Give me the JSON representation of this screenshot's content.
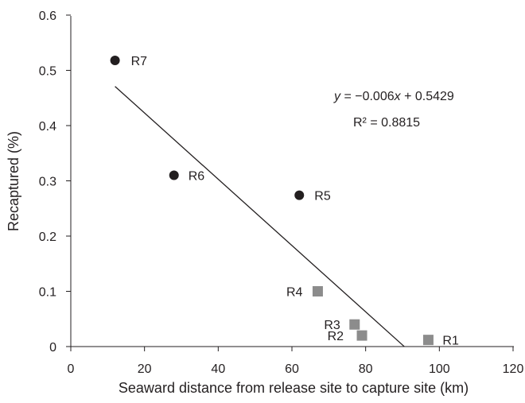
{
  "chart_data": {
    "type": "scatter",
    "title": "",
    "xlabel": "Seaward distance from release site to capture site (km)",
    "ylabel": "Recaptured (%)",
    "xlim": [
      0,
      120
    ],
    "ylim": [
      0,
      0.6
    ],
    "xticks": [
      "0",
      "20",
      "40",
      "60",
      "80",
      "100",
      "120"
    ],
    "yticks": [
      "0",
      "0.1",
      "0.2",
      "0.3",
      "0.4",
      "0.5",
      "0.6"
    ],
    "grid": false,
    "colors": {
      "circle": "#231f20",
      "square": "#8c8c8c",
      "line": "#231f20",
      "axis": "#231f20"
    },
    "series": [
      {
        "marker": "circle",
        "points": [
          {
            "label": "R7",
            "x": 12,
            "y": 0.518
          },
          {
            "label": "R6",
            "x": 28,
            "y": 0.31
          },
          {
            "label": "R5",
            "x": 62,
            "y": 0.274
          }
        ]
      },
      {
        "marker": "square",
        "points": [
          {
            "label": "R4",
            "x": 67,
            "y": 0.1
          },
          {
            "label": "R3",
            "x": 77,
            "y": 0.04
          },
          {
            "label": "R2",
            "x": 79,
            "y": 0.02
          },
          {
            "label": "R1",
            "x": 97,
            "y": 0.012
          }
        ]
      }
    ],
    "trendline": {
      "slope": -0.006,
      "intercept": 0.5429,
      "x_from": 12,
      "x_to": 90.5
    },
    "annotations": {
      "equation_y": "y",
      "equation_rest": " = −0.006",
      "equation_x": "x",
      "equation_tail": " + 0.5429",
      "r_squared": "R² = 0.8815"
    }
  }
}
